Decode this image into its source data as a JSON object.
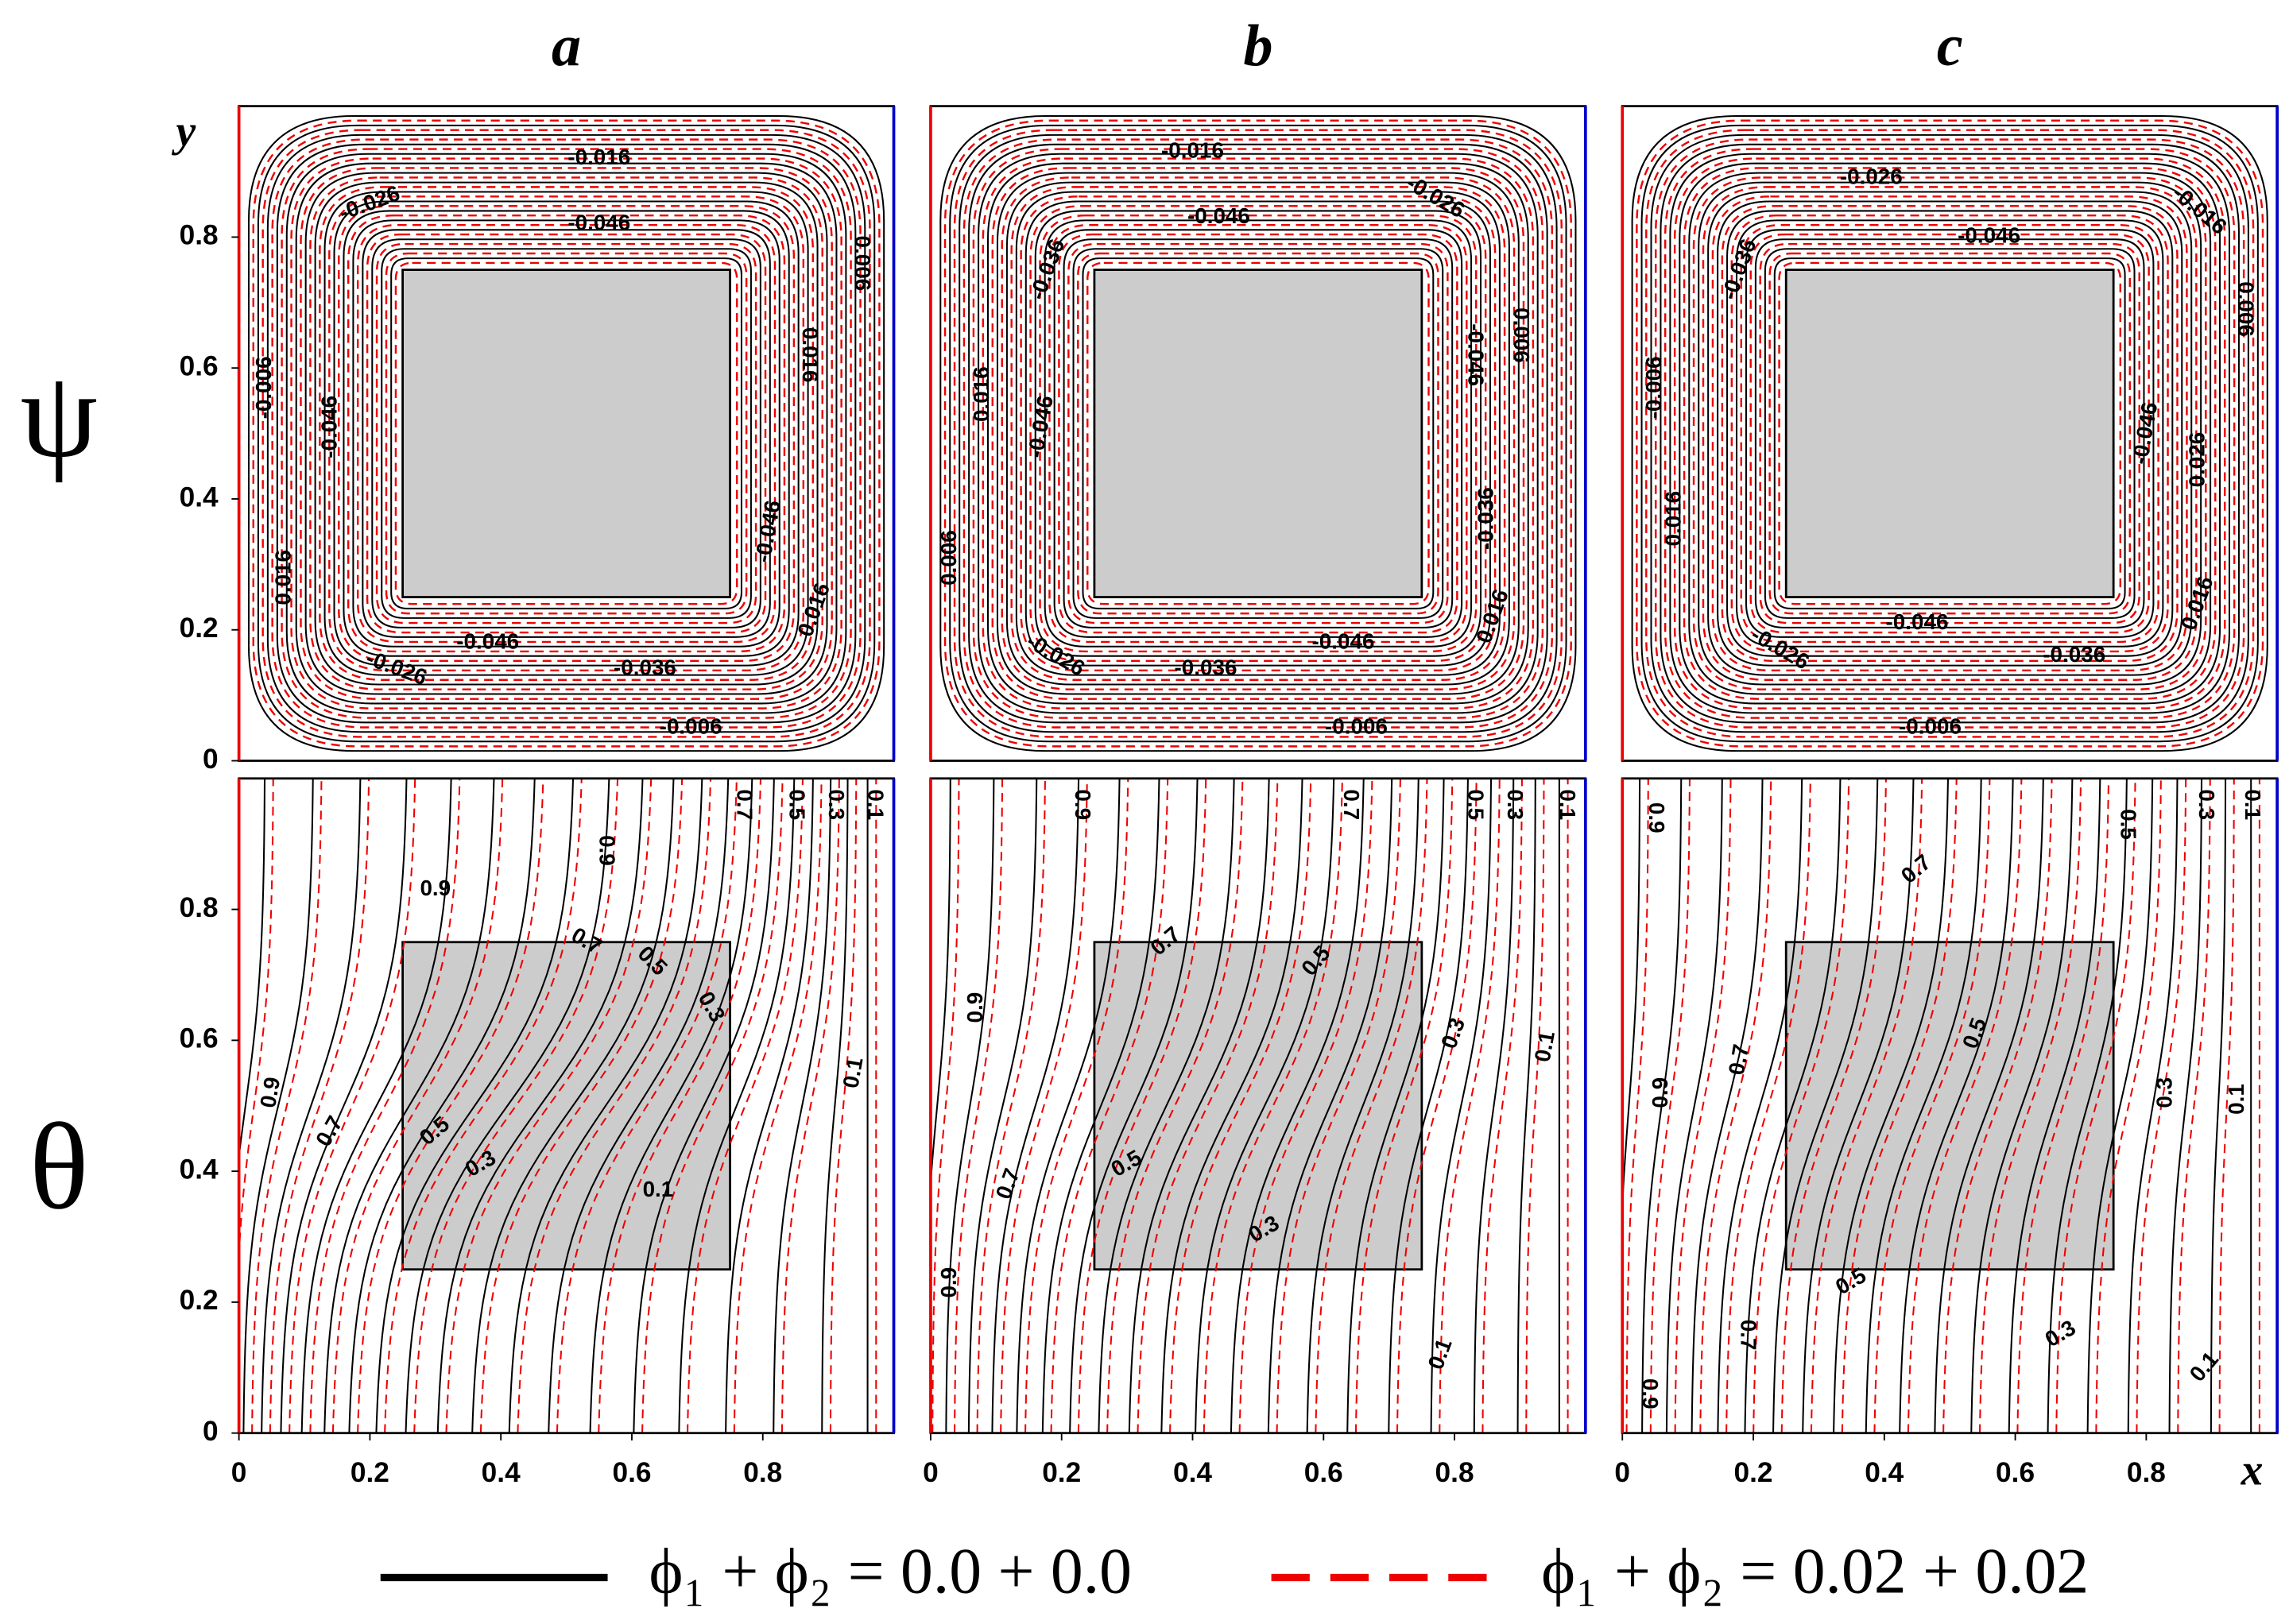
{
  "columns": [
    "a",
    "b",
    "c"
  ],
  "rows": [
    "ψ",
    "θ"
  ],
  "axes": {
    "y_label": "y",
    "x_label": "x",
    "xticks": [
      0,
      0.2,
      0.4,
      0.6,
      0.8
    ],
    "yticks": [
      0,
      0.2,
      0.4,
      0.6,
      0.8
    ]
  },
  "panels": [
    {
      "psi_labels": [
        "-0.016",
        "-0.026",
        "-0.046",
        "0.006",
        "0.016",
        "-0.006",
        "-0.046",
        "-0.046",
        "0.016",
        "0.016",
        "-0.046",
        "-0.026",
        "-0.036",
        "-0.006"
      ],
      "theta_labels": [
        "0.9",
        "0.7",
        "0.5",
        "0.3",
        "0.1",
        "0.9",
        "0.7",
        "0.5",
        "0.3",
        "0.1",
        "0.9",
        "0.7",
        "0.5",
        "0.3",
        "0.1"
      ]
    },
    {
      "psi_labels": [
        "-0.016",
        "-0.026",
        "-0.046",
        "-0.036",
        "0.006",
        "-0.046",
        "0.016",
        "-0.046",
        "-0.036",
        "0.006",
        "0.016",
        "-0.046",
        "-0.026",
        "-0.036",
        "-0.006"
      ],
      "theta_labels": [
        "0.9",
        "0.7",
        "0.5",
        "0.3",
        "0.1",
        "0.7",
        "0.5",
        "0.9",
        "0.3",
        "0.1",
        "0.7",
        "0.5",
        "0.3",
        "0.9",
        "0.1"
      ]
    },
    {
      "psi_labels": [
        "-0.026",
        "-0.016",
        "-0.046",
        "-0.036",
        "0.006",
        "-0.006",
        "-0.046",
        "0.016",
        "0.026",
        "0.016",
        "-0.046",
        "-0.026",
        "-0.036",
        "-0.006"
      ],
      "theta_labels": [
        "0.9",
        "0.5",
        "0.3",
        "0.1",
        "0.7",
        "0.9",
        "0.7",
        "0.5",
        "0.3",
        "0.1",
        "0.5",
        "0.7",
        "0.3",
        "0.1",
        "0.9"
      ]
    }
  ],
  "legend": [
    "ϕ₁ + ϕ₂ = 0.0 + 0.0",
    "ϕ₁ + ϕ₂ = 0.02 + 0.02"
  ]
}
